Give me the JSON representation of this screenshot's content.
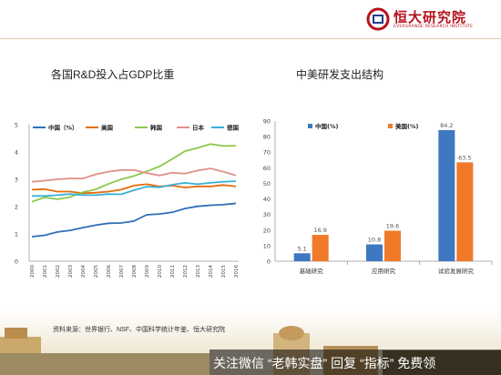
{
  "header": {
    "logo_name": "恒大研究院",
    "logo_sub": "EVERGRANDE RESEARCH INSTITUTE"
  },
  "source_note": "资料来源：世界银行、NSF、中国科学统计年鉴、恒大研究院",
  "watermark": "关注微信 “老韩实盘” 回复 “指标” 免费领",
  "colors": {
    "china": "#2f6fb6",
    "us": "#e46c0a",
    "korea": "#8ec74e",
    "japan": "#e1908b",
    "germany": "#3ab0d8",
    "bar_china": "#3f78c0",
    "bar_us": "#f07a2a",
    "brand": "#b5121b"
  },
  "chart_data": [
    {
      "type": "line",
      "title": "各国R&D投入占GDP比重",
      "x": [
        "2000",
        "2001",
        "2002",
        "2003",
        "2004",
        "2005",
        "2006",
        "2007",
        "2008",
        "2009",
        "2010",
        "2011",
        "2012",
        "2013",
        "2014",
        "2015",
        "2016"
      ],
      "ylim": [
        0,
        5
      ],
      "yticks": [
        "0",
        "1",
        "2",
        "3",
        "4",
        "5"
      ],
      "grid": false,
      "legend": "top",
      "series": [
        {
          "name": "中国（%）",
          "color_key": "china",
          "values": [
            0.9,
            0.95,
            1.07,
            1.13,
            1.23,
            1.32,
            1.39,
            1.4,
            1.47,
            1.7,
            1.73,
            1.79,
            1.93,
            2.01,
            2.05,
            2.07,
            2.12
          ]
        },
        {
          "name": "美国",
          "color_key": "us",
          "values": [
            2.62,
            2.64,
            2.55,
            2.55,
            2.49,
            2.51,
            2.55,
            2.62,
            2.77,
            2.82,
            2.74,
            2.77,
            2.7,
            2.74,
            2.74,
            2.79,
            2.74
          ]
        },
        {
          "name": "韩国",
          "color_key": "korea",
          "values": [
            2.18,
            2.34,
            2.27,
            2.35,
            2.53,
            2.63,
            2.83,
            3.0,
            3.12,
            3.29,
            3.47,
            3.74,
            4.03,
            4.15,
            4.29,
            4.22,
            4.23
          ]
        },
        {
          "name": "日本",
          "color_key": "japan",
          "values": [
            2.91,
            2.95,
            3.0,
            3.03,
            3.03,
            3.18,
            3.28,
            3.34,
            3.34,
            3.23,
            3.14,
            3.24,
            3.21,
            3.32,
            3.4,
            3.28,
            3.14
          ]
        },
        {
          "name": "德国",
          "color_key": "germany",
          "values": [
            2.39,
            2.39,
            2.42,
            2.46,
            2.42,
            2.42,
            2.46,
            2.45,
            2.6,
            2.73,
            2.71,
            2.8,
            2.87,
            2.82,
            2.87,
            2.91,
            2.93
          ]
        }
      ]
    },
    {
      "type": "bar",
      "title": "中美研发支出结构",
      "categories": [
        "基础研究",
        "应用研究",
        "试验发展研究"
      ],
      "ylim": [
        0,
        90
      ],
      "yticks": [
        "0",
        "10",
        "20",
        "30",
        "40",
        "50",
        "60",
        "70",
        "80",
        "90"
      ],
      "legend": "top-left",
      "series": [
        {
          "name": "中国(%)",
          "color_key": "bar_china",
          "values": [
            5.1,
            10.8,
            84.2
          ],
          "labels": [
            "5.1",
            "10.8",
            "84.2"
          ]
        },
        {
          "name": "美国(%)",
          "color_key": "bar_us",
          "values": [
            16.9,
            19.6,
            63.5
          ],
          "labels": [
            "16.9",
            "19.6",
            "63.5"
          ]
        }
      ]
    }
  ]
}
